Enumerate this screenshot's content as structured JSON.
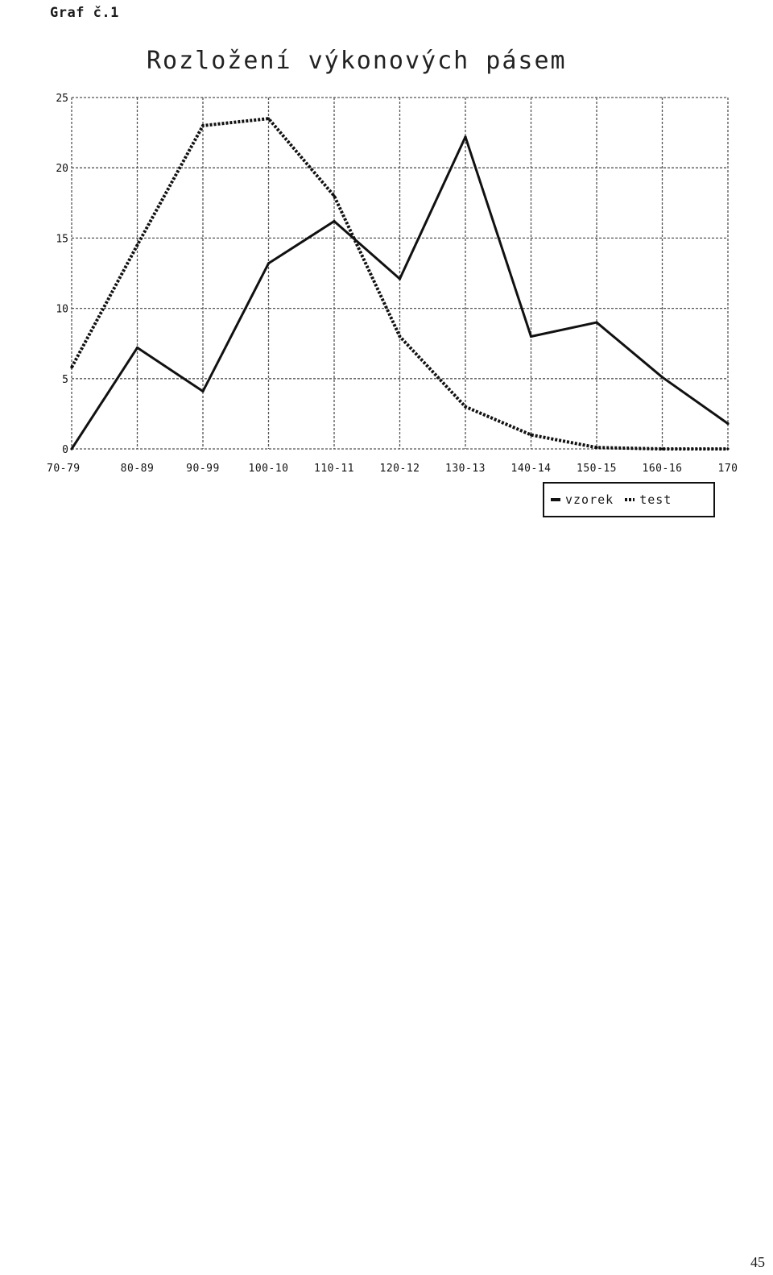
{
  "caption": "Graf č.1",
  "page_number": "45",
  "chart_data": {
    "type": "line",
    "title": "Rozložení výkonových pásem",
    "xlabel": "",
    "ylabel": "%",
    "ylim": [
      0,
      25
    ],
    "yticks": [
      0,
      5,
      10,
      15,
      20,
      25
    ],
    "categories": [
      "70-79",
      "80-89",
      "90-99",
      "100-10",
      "110-11",
      "120-12",
      "130-13",
      "140-14",
      "150-15",
      "160-16",
      "170"
    ],
    "grid": true,
    "legend_position": "bottom-right",
    "series": [
      {
        "name": "vzorek",
        "style": "solid",
        "values": [
          0,
          7.2,
          4.1,
          13.2,
          16.2,
          12.1,
          22.2,
          8.0,
          9.0,
          5.1,
          1.8
        ]
      },
      {
        "name": "test",
        "style": "dotted",
        "values": [
          5.8,
          14.5,
          23.0,
          23.5,
          18.0,
          8.0,
          3.0,
          1.0,
          0.1,
          0.0,
          0.0
        ]
      }
    ],
    "colors": {
      "lines": "#111111",
      "grid": "#555555"
    }
  }
}
